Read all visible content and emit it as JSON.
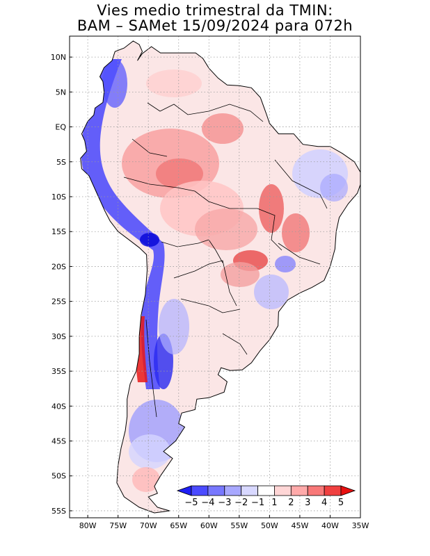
{
  "title": {
    "line1": "Vies medio trimestral da TMIN:",
    "line2": "BAM – SAMet 15/09/2024  para 072h"
  },
  "map": {
    "lon_range": [
      -83,
      -35
    ],
    "lat_range": [
      -56,
      13
    ],
    "lat_ticks": [
      {
        "value": 10,
        "label": "10N"
      },
      {
        "value": 5,
        "label": "5N"
      },
      {
        "value": 0,
        "label": "EQ"
      },
      {
        "value": -5,
        "label": "5S"
      },
      {
        "value": -10,
        "label": "10S"
      },
      {
        "value": -15,
        "label": "15S"
      },
      {
        "value": -20,
        "label": "20S"
      },
      {
        "value": -25,
        "label": "25S"
      },
      {
        "value": -30,
        "label": "30S"
      },
      {
        "value": -35,
        "label": "35S"
      },
      {
        "value": -40,
        "label": "40S"
      },
      {
        "value": -45,
        "label": "45S"
      },
      {
        "value": -50,
        "label": "50S"
      },
      {
        "value": -55,
        "label": "55S"
      }
    ],
    "lon_ticks": [
      {
        "value": -80,
        "label": "80W"
      },
      {
        "value": -75,
        "label": "75W"
      },
      {
        "value": -70,
        "label": "70W"
      },
      {
        "value": -65,
        "label": "65W"
      },
      {
        "value": -60,
        "label": "60W"
      },
      {
        "value": -55,
        "label": "55W"
      },
      {
        "value": -50,
        "label": "50W"
      },
      {
        "value": -45,
        "label": "45W"
      },
      {
        "value": -40,
        "label": "40W"
      },
      {
        "value": -35,
        "label": "35W"
      }
    ],
    "grid": true,
    "colors": {
      "land": "#fbe6e6",
      "coast": "#000000",
      "grid": "#9a9a9a"
    }
  },
  "colorbar": {
    "labels": [
      "−5",
      "−4",
      "−3",
      "−2",
      "−1",
      "1",
      "2",
      "3",
      "4",
      "5"
    ],
    "colors": [
      "#1f1ff5",
      "#4a4aff",
      "#7878ff",
      "#a8a8ff",
      "#d8d8ff",
      "#ffffff",
      "#ffd6d6",
      "#ffaaaa",
      "#f87878",
      "#f04040",
      "#e81010"
    ]
  }
}
